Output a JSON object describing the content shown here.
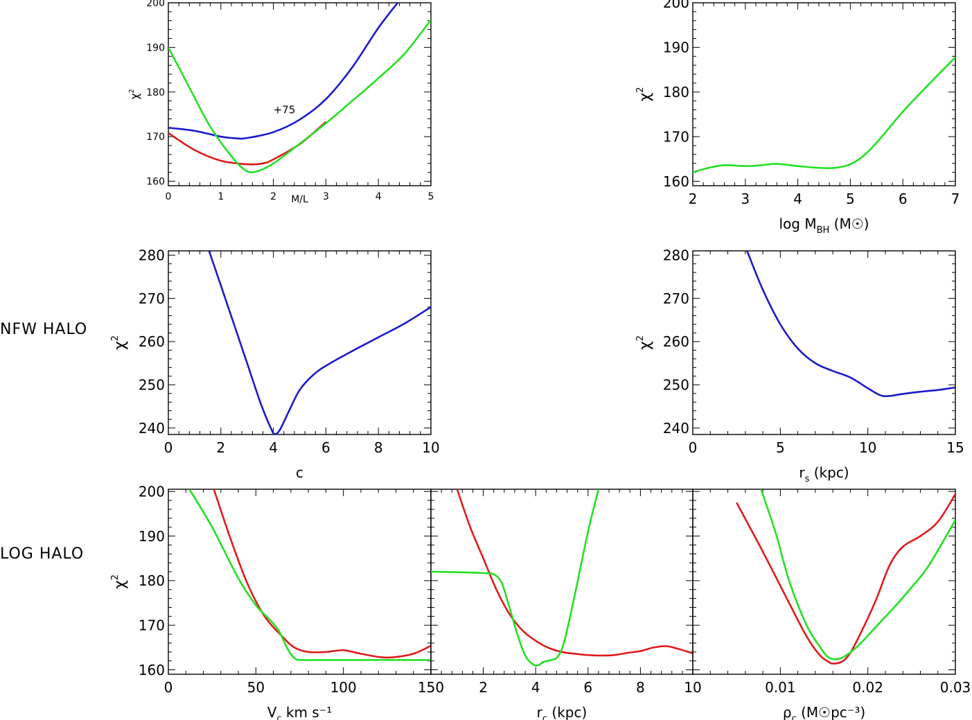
{
  "row_labels": {
    "nfw": "NFW HALO",
    "log": "LOG HALO"
  },
  "colors": {
    "blue": "#1a1acc",
    "red": "#e01a1a",
    "green": "#22e022"
  },
  "chart_data": [
    {
      "id": "ml",
      "type": "line",
      "xlabel": "M/L",
      "ylabel": "χ²",
      "xlim": [
        0,
        5
      ],
      "ylim": [
        159,
        200
      ],
      "xticks": [
        0,
        1,
        2,
        3,
        4,
        5
      ],
      "xtick_labels": [
        "0",
        "1",
        "2",
        "3",
        "4",
        "5"
      ],
      "yticks": [
        160,
        170,
        180,
        190,
        200
      ],
      "ytick_labels": [
        "160",
        "170",
        "180",
        "190",
        "200"
      ],
      "annotation": {
        "text": "+75",
        "x": 2.0,
        "y": 175.2
      },
      "series": [
        {
          "name": "blue",
          "color": "blue",
          "x": [
            0,
            0.5,
            1.0,
            1.3,
            1.5,
            2.0,
            2.5,
            3.0,
            3.5,
            4.0,
            4.4
          ],
          "y": [
            172.0,
            171.3,
            170.0,
            169.6,
            169.7,
            171.0,
            173.8,
            178.4,
            185.5,
            194.4,
            200.5
          ]
        },
        {
          "name": "red",
          "color": "red",
          "x": [
            0,
            0.5,
            1.0,
            1.5,
            1.8,
            2.0,
            2.5,
            3.0
          ],
          "y": [
            170.8,
            167.0,
            164.6,
            163.8,
            164.0,
            164.9,
            168.3,
            173.3
          ]
        },
        {
          "name": "green",
          "color": "green",
          "x": [
            0,
            0.4,
            0.8,
            1.2,
            1.45,
            1.65,
            2.0,
            2.5,
            3.0,
            3.5,
            4.0,
            4.5,
            5.0
          ],
          "y": [
            190.0,
            181.0,
            172.2,
            165.6,
            162.6,
            162.1,
            164.0,
            168.4,
            173.0,
            178.0,
            183.1,
            188.6,
            196.2
          ]
        }
      ]
    },
    {
      "id": "mbh",
      "type": "line",
      "xlabel": "log M_BH (M☉)",
      "ylabel": "χ²",
      "xlim": [
        2,
        7
      ],
      "ylim": [
        159,
        200
      ],
      "xticks": [
        2,
        3,
        4,
        5,
        6,
        7
      ],
      "xtick_labels": [
        "2",
        "3",
        "4",
        "5",
        "6",
        "7"
      ],
      "yticks": [
        160,
        170,
        180,
        190,
        200
      ],
      "ytick_labels": [
        "160",
        "170",
        "180",
        "190",
        "200"
      ],
      "series": [
        {
          "name": "green",
          "color": "green",
          "x": [
            2.0,
            2.3,
            2.6,
            3.0,
            3.3,
            3.6,
            4.0,
            4.4,
            4.7,
            5.0,
            5.3,
            5.6,
            6.0,
            6.5,
            7.0
          ],
          "y": [
            162.0,
            163.0,
            163.6,
            163.4,
            163.6,
            163.9,
            163.4,
            163.0,
            163.0,
            163.8,
            166.2,
            170.0,
            175.6,
            181.8,
            187.8
          ]
        }
      ]
    },
    {
      "id": "c",
      "type": "line",
      "xlabel": "c",
      "ylabel": "χ²",
      "xlim": [
        0,
        10
      ],
      "ylim": [
        238.5,
        281
      ],
      "xticks": [
        0,
        2,
        4,
        6,
        8,
        10
      ],
      "xtick_labels": [
        "0",
        "2",
        "4",
        "6",
        "8",
        "10"
      ],
      "yticks": [
        240,
        250,
        260,
        270,
        280
      ],
      "ytick_labels": [
        "240",
        "250",
        "260",
        "270",
        "280"
      ],
      "series": [
        {
          "name": "blue",
          "color": "blue",
          "x": [
            1.55,
            2.0,
            2.5,
            3.0,
            3.5,
            3.9,
            4.05,
            4.25,
            4.6,
            5.0,
            5.5,
            6.0,
            7.0,
            8.0,
            9.0,
            10.0
          ],
          "y": [
            281.0,
            273.0,
            264.0,
            255.0,
            246.0,
            240.0,
            238.6,
            239.6,
            244.0,
            248.8,
            252.2,
            254.4,
            257.8,
            261.0,
            264.2,
            268.0
          ]
        }
      ]
    },
    {
      "id": "rs",
      "type": "line",
      "xlabel": "r_s (kpc)",
      "ylabel": "χ²",
      "xlim": [
        0,
        15
      ],
      "ylim": [
        238.5,
        281
      ],
      "xticks": [
        0,
        5,
        10,
        15
      ],
      "xtick_labels": [
        "0",
        "5",
        "10",
        "15"
      ],
      "yticks": [
        240,
        250,
        260,
        270,
        280
      ],
      "ytick_labels": [
        "240",
        "250",
        "260",
        "270",
        "280"
      ],
      "series": [
        {
          "name": "blue",
          "color": "blue",
          "x": [
            3.1,
            4.0,
            5.0,
            6.0,
            7.0,
            8.0,
            9.0,
            10.0,
            10.7,
            11.2,
            12.0,
            13.0,
            14.0,
            15.0
          ],
          "y": [
            281.0,
            272.0,
            264.0,
            258.4,
            255.0,
            253.2,
            251.7,
            249.2,
            247.6,
            247.4,
            247.9,
            248.4,
            248.8,
            249.4
          ]
        }
      ]
    },
    {
      "id": "vc",
      "type": "line",
      "xlabel": "V_c km s⁻¹",
      "ylabel": "χ²",
      "xlim": [
        0,
        150
      ],
      "ylim": [
        159,
        200.5
      ],
      "xticks": [
        0,
        50,
        100,
        150
      ],
      "xtick_labels": [
        "0",
        "50",
        "100",
        "150"
      ],
      "yticks": [
        160,
        170,
        180,
        190,
        200
      ],
      "ytick_labels": [
        "160",
        "170",
        "180",
        "190",
        "200"
      ],
      "series": [
        {
          "name": "red",
          "color": "red",
          "x": [
            26,
            35,
            45,
            55,
            65,
            72,
            80,
            90,
            100,
            110,
            120,
            128,
            140,
            150
          ],
          "y": [
            200.5,
            190.0,
            179.5,
            172.0,
            167.5,
            165.0,
            164.0,
            164.0,
            164.4,
            163.6,
            162.9,
            162.8,
            163.6,
            165.4
          ]
        },
        {
          "name": "green",
          "color": "green",
          "x": [
            12,
            25,
            40,
            50,
            58,
            63,
            68,
            72,
            76,
            85,
            100,
            120,
            150
          ],
          "y": [
            200.5,
            192.0,
            180.5,
            174.5,
            171.2,
            168.8,
            164.8,
            162.6,
            162.2,
            162.2,
            162.2,
            162.2,
            162.2
          ]
        }
      ]
    },
    {
      "id": "rc",
      "type": "line",
      "xlabel": "r_c (kpc)",
      "ylabel": "",
      "xlim": [
        0,
        10
      ],
      "ylim": [
        159,
        200.5
      ],
      "xticks": [
        0,
        2,
        4,
        6,
        8,
        10
      ],
      "xtick_labels": [
        "",
        "2",
        "4",
        "6",
        "8",
        "10"
      ],
      "yticks": [
        160,
        170,
        180,
        190,
        200
      ],
      "ytick_labels": [],
      "series": [
        {
          "name": "red",
          "color": "red",
          "x": [
            1.0,
            1.5,
            2.0,
            2.5,
            3.0,
            3.5,
            4.0,
            4.5,
            5.0,
            5.5,
            6.0,
            6.5,
            7.0,
            7.5,
            8.0,
            8.5,
            9.0,
            9.5,
            10.0
          ],
          "y": [
            200.5,
            192.0,
            185.0,
            178.0,
            172.5,
            168.8,
            166.5,
            164.9,
            164.0,
            163.6,
            163.3,
            163.2,
            163.3,
            163.8,
            164.2,
            165.0,
            165.3,
            164.6,
            163.7
          ]
        },
        {
          "name": "green",
          "color": "green",
          "x": [
            0,
            1.0,
            2.0,
            2.4,
            2.7,
            3.0,
            3.3,
            3.6,
            3.9,
            4.1,
            4.3,
            4.6,
            4.85,
            5.1,
            5.5,
            6.0,
            6.4
          ],
          "y": [
            182.0,
            181.9,
            181.7,
            181.4,
            179.5,
            174.0,
            168.0,
            163.2,
            161.2,
            161.0,
            161.8,
            162.2,
            163.0,
            166.5,
            177.0,
            191.0,
            200.5
          ]
        }
      ]
    },
    {
      "id": "rho",
      "type": "line",
      "xlabel": "ρ_c (M☉pc⁻³)",
      "ylabel": "",
      "xlim": [
        0,
        0.03
      ],
      "ylim": [
        159,
        200.5
      ],
      "xticks": [
        0,
        0.01,
        0.02,
        0.03
      ],
      "xtick_labels": [
        "",
        "0.01",
        "0.02",
        "0.03"
      ],
      "yticks": [
        160,
        170,
        180,
        190,
        200
      ],
      "ytick_labels": [],
      "series": [
        {
          "name": "red",
          "color": "red",
          "x": [
            0.005,
            0.008,
            0.011,
            0.013,
            0.0145,
            0.0155,
            0.016,
            0.017,
            0.018,
            0.0195,
            0.021,
            0.0225,
            0.024,
            0.026,
            0.028,
            0.03
          ],
          "y": [
            197.5,
            186.5,
            175.0,
            167.5,
            163.3,
            161.8,
            161.4,
            161.8,
            163.8,
            169.5,
            176.0,
            183.5,
            187.6,
            190.0,
            193.2,
            199.4
          ]
        },
        {
          "name": "green",
          "color": "green",
          "x": [
            0.0078,
            0.0095,
            0.011,
            0.013,
            0.0145,
            0.0155,
            0.0165,
            0.0175,
            0.019,
            0.021,
            0.023,
            0.025,
            0.027,
            0.03
          ],
          "y": [
            200.5,
            190.5,
            180.0,
            170.0,
            165.2,
            162.8,
            162.4,
            163.2,
            165.6,
            169.8,
            174.0,
            178.5,
            183.5,
            193.6
          ]
        }
      ]
    }
  ]
}
